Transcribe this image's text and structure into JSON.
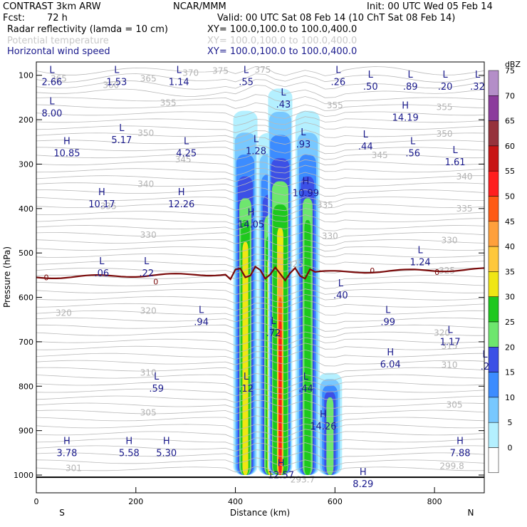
{
  "header": {
    "model": "CONTRAST  3km ARW",
    "org": "NCAR/MMM",
    "init": "Init: 00 UTC Wed 05 Feb 14",
    "fcst_label": "Fcst:",
    "fcst_value": "72 h",
    "valid": "Valid: 00 UTC Sat 08 Feb 14 (10 ChT Sat 08 Feb 14)",
    "fields": [
      {
        "name": "Radar reflectivity (lamda = 10 cm)",
        "xy": "XY=  100.0,100.0 to 100.0,400.0",
        "color": "#000000"
      },
      {
        "name": "Potential temperature",
        "xy": "XY=  100.0,100.0 to 100.0,400.0",
        "color": "#c8c8c8"
      },
      {
        "name": "Horizontal wind speed",
        "xy": "XY=  100.0,100.0 to 100.0,400.0",
        "color": "#1a1a8c"
      }
    ]
  },
  "chart_data": {
    "type": "cross-section",
    "ylabel": "Pressure (hPa)",
    "xlabel": "Distance (km)",
    "xlim": [
      0,
      900
    ],
    "ylim": [
      1040,
      70
    ],
    "x_ticks": [
      0,
      200,
      400,
      600,
      800
    ],
    "y_ticks": [
      100,
      200,
      300,
      400,
      500,
      600,
      700,
      800,
      900,
      1000
    ],
    "x_end_labels": {
      "left": "S",
      "right": "N"
    },
    "colorbar": {
      "unit": "dBZ",
      "levels": [
        "75",
        "70",
        "65",
        "60",
        "55",
        "50",
        "45",
        "40",
        "35",
        "30",
        "25",
        "20",
        "15",
        "10",
        "5",
        "0"
      ],
      "colors": [
        "#b48ec8",
        "#8c3c9c",
        "#96323c",
        "#c81414",
        "#ff1e1e",
        "#ff5a14",
        "#ffa03c",
        "#ffc83c",
        "#f0e614",
        "#1ec81e",
        "#6ee66e",
        "#3c50e6",
        "#3c8cff",
        "#78c8ff",
        "#b4f0ff",
        "#ffffff"
      ]
    },
    "reflectivity_columns": [
      {
        "x": 420,
        "top": 180,
        "bottom": 1000,
        "max_dbz": 35
      },
      {
        "x": 470,
        "top": 230,
        "bottom": 1000,
        "max_dbz": 35
      },
      {
        "x": 490,
        "top": 130,
        "bottom": 1000,
        "max_dbz": 55
      },
      {
        "x": 545,
        "top": 180,
        "bottom": 1000,
        "max_dbz": 30
      },
      {
        "x": 590,
        "top": 770,
        "bottom": 1000,
        "max_dbz": 25
      }
    ],
    "theta_labels": [
      {
        "text": "365",
        "x": 45,
        "p": 108
      },
      {
        "text": "360",
        "x": 150,
        "p": 122
      },
      {
        "text": "365",
        "x": 225,
        "p": 108
      },
      {
        "text": "370",
        "x": 310,
        "p": 95
      },
      {
        "text": "375",
        "x": 370,
        "p": 90
      },
      {
        "text": "375",
        "x": 455,
        "p": 88
      },
      {
        "text": "355",
        "x": 265,
        "p": 162
      },
      {
        "text": "355",
        "x": 600,
        "p": 168
      },
      {
        "text": "355",
        "x": 820,
        "p": 172
      },
      {
        "text": "350",
        "x": 220,
        "p": 230
      },
      {
        "text": "350",
        "x": 820,
        "p": 232
      },
      {
        "text": "345",
        "x": 295,
        "p": 290
      },
      {
        "text": "345",
        "x": 690,
        "p": 280
      },
      {
        "text": "340",
        "x": 220,
        "p": 345
      },
      {
        "text": "340",
        "x": 860,
        "p": 328
      },
      {
        "text": "335",
        "x": 145,
        "p": 395
      },
      {
        "text": "335",
        "x": 580,
        "p": 392
      },
      {
        "text": "335",
        "x": 860,
        "p": 400
      },
      {
        "text": "330",
        "x": 225,
        "p": 460
      },
      {
        "text": "330",
        "x": 590,
        "p": 462
      },
      {
        "text": "330",
        "x": 830,
        "p": 472
      },
      {
        "text": "325",
        "x": 520,
        "p": 525
      },
      {
        "text": "325",
        "x": 825,
        "p": 540
      },
      {
        "text": "320",
        "x": 55,
        "p": 635
      },
      {
        "text": "320",
        "x": 225,
        "p": 630
      },
      {
        "text": "320",
        "x": 815,
        "p": 680
      },
      {
        "text": "315",
        "x": 830,
        "p": 710
      },
      {
        "text": "310",
        "x": 225,
        "p": 770
      },
      {
        "text": "310",
        "x": 830,
        "p": 752
      },
      {
        "text": "305",
        "x": 225,
        "p": 860
      },
      {
        "text": "305",
        "x": 840,
        "p": 842
      },
      {
        "text": "301",
        "x": 75,
        "p": 985
      },
      {
        "text": "299.8",
        "x": 835,
        "p": 980
      },
      {
        "text": "293.7",
        "x": 535,
        "p": 1010
      }
    ],
    "freezing_level_label": "0",
    "wind_labels": [
      {
        "t": "L",
        "v": "2.66",
        "x": 20,
        "p": 100
      },
      {
        "t": "L",
        "v": "1.53",
        "x": 150,
        "p": 100
      },
      {
        "t": "L",
        "v": "1.14",
        "x": 275,
        "p": 100
      },
      {
        "t": "L",
        "v": ".55",
        "x": 410,
        "p": 100
      },
      {
        "t": "L",
        "v": ".26",
        "x": 595,
        "p": 100
      },
      {
        "t": "L",
        "v": ".50",
        "x": 660,
        "p": 110
      },
      {
        "t": "L",
        "v": ".89",
        "x": 740,
        "p": 110
      },
      {
        "t": "L",
        "v": ".20",
        "x": 810,
        "p": 110
      },
      {
        "t": "L",
        "v": ".32",
        "x": 875,
        "p": 110
      },
      {
        "t": "L",
        "v": "8.00",
        "x": 20,
        "p": 170
      },
      {
        "t": "L",
        "v": ".43",
        "x": 485,
        "p": 150
      },
      {
        "t": "H",
        "v": "14.19",
        "x": 730,
        "p": 180
      },
      {
        "t": "L",
        "v": "5.17",
        "x": 160,
        "p": 230
      },
      {
        "t": "H",
        "v": "10.85",
        "x": 50,
        "p": 260
      },
      {
        "t": "L",
        "v": "4.25",
        "x": 290,
        "p": 260
      },
      {
        "t": "L",
        "v": "1.28",
        "x": 430,
        "p": 255
      },
      {
        "t": "L",
        "v": ".93",
        "x": 525,
        "p": 240
      },
      {
        "t": "L",
        "v": ".44",
        "x": 650,
        "p": 245
      },
      {
        "t": "L",
        "v": ".56",
        "x": 745,
        "p": 260
      },
      {
        "t": "L",
        "v": "1.61",
        "x": 830,
        "p": 280
      },
      {
        "t": "H",
        "v": "10.99",
        "x": 530,
        "p": 350
      },
      {
        "t": "H",
        "v": "10.17",
        "x": 120,
        "p": 375
      },
      {
        "t": "H",
        "v": "12.26",
        "x": 280,
        "p": 375
      },
      {
        "t": "H",
        "v": "14.05",
        "x": 420,
        "p": 420
      },
      {
        "t": "L",
        "v": "1.24",
        "x": 760,
        "p": 505
      },
      {
        "t": "L",
        "v": ".06",
        "x": 120,
        "p": 530
      },
      {
        "t": "L",
        "v": ".22",
        "x": 210,
        "p": 530
      },
      {
        "t": "L",
        "v": ".40",
        "x": 600,
        "p": 580
      },
      {
        "t": "L",
        "v": ".94",
        "x": 320,
        "p": 640
      },
      {
        "t": "L",
        "v": ".99",
        "x": 695,
        "p": 640
      },
      {
        "t": "L",
        "v": ".72",
        "x": 465,
        "p": 665
      },
      {
        "t": "L",
        "v": "1.17",
        "x": 820,
        "p": 685
      },
      {
        "t": "H",
        "v": "6.04",
        "x": 700,
        "p": 735
      },
      {
        "t": "L",
        "v": ".2",
        "x": 890,
        "p": 740
      },
      {
        "t": "L",
        "v": ".59",
        "x": 230,
        "p": 790
      },
      {
        "t": "L",
        "v": ".12",
        "x": 410,
        "p": 790
      },
      {
        "t": "L",
        "v": ".44",
        "x": 530,
        "p": 790
      },
      {
        "t": "H",
        "v": "14.26",
        "x": 565,
        "p": 875
      },
      {
        "t": "H",
        "v": "3.78",
        "x": 50,
        "p": 935
      },
      {
        "t": "H",
        "v": "5.58",
        "x": 175,
        "p": 935
      },
      {
        "t": "H",
        "v": "5.30",
        "x": 250,
        "p": 935
      },
      {
        "t": "H",
        "v": "7.88",
        "x": 840,
        "p": 935
      },
      {
        "t": "H",
        "v": "12.57",
        "x": 480,
        "p": 985
      },
      {
        "t": "H",
        "v": "8.29",
        "x": 645,
        "p": 1005
      }
    ]
  }
}
